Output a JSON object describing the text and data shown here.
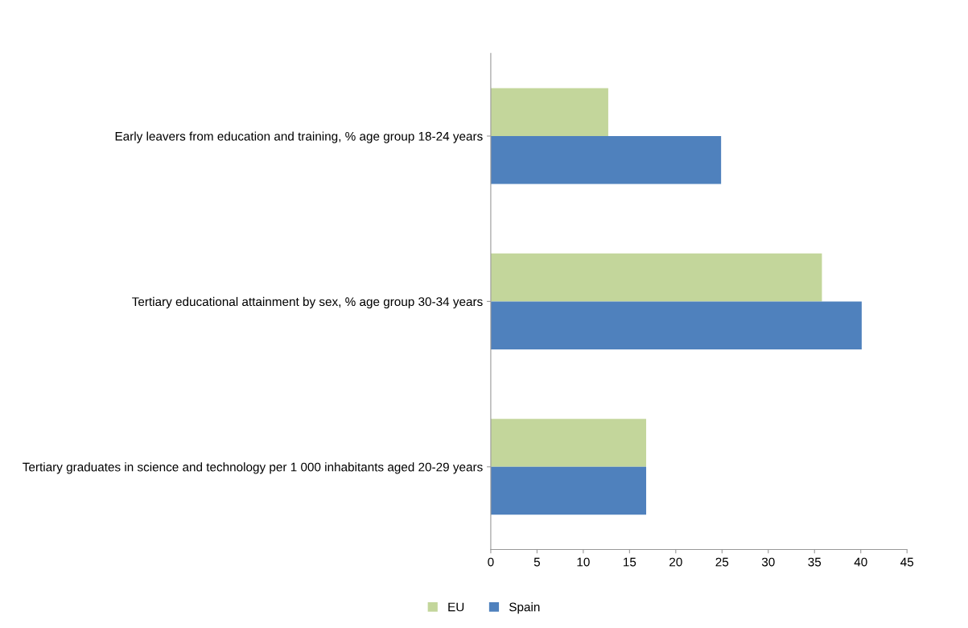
{
  "chart_data": {
    "type": "bar",
    "orientation": "horizontal",
    "categories": [
      "Early leavers from education and training, % age group 18-24 years",
      "Tertiary educational attainment by sex, % age group 30-34 years",
      "Tertiary graduates in science and technology per 1 000 inhabitants aged 20-29 years"
    ],
    "series": [
      {
        "name": "EU",
        "color": "#c3d69b",
        "values": [
          12.7,
          35.8,
          16.8
        ]
      },
      {
        "name": "Spain",
        "color": "#4f81bd",
        "values": [
          24.9,
          40.1,
          16.8
        ]
      }
    ],
    "xlim": [
      0,
      45
    ],
    "xticks": [
      0,
      5,
      10,
      15,
      20,
      25,
      30,
      35,
      40,
      45
    ],
    "grid": false,
    "legend": "bottom"
  }
}
